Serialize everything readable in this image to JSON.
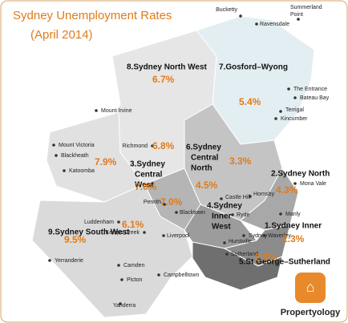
{
  "header": {
    "title": "Sydney Unemployment Rates",
    "subtitle": "(April 2014)"
  },
  "regions": [
    {
      "lines": [
        "8.Sydney North West"
      ]
    },
    {
      "lines": [
        "7.Gosford–Wyong"
      ]
    },
    {
      "lines": [
        "6.Sydney",
        "Central",
        "North"
      ]
    },
    {
      "lines": [
        "3.Sydney",
        "Central",
        "West"
      ]
    },
    {
      "lines": [
        "4.Sydney",
        "Inner",
        "West"
      ]
    },
    {
      "lines": [
        "2.Sydney North"
      ]
    },
    {
      "lines": [
        "1.Sydney Inner"
      ]
    },
    {
      "lines": [
        "5.St George–Sutherland"
      ]
    },
    {
      "lines": [
        "9.Sydney South West"
      ]
    }
  ],
  "rates": [
    "6.7%",
    "5.4%",
    "6.8%",
    "7.9%",
    "3.3%",
    "7.0%",
    "4.5%",
    "7.0%",
    "6.1%",
    "9.5%",
    "4.3%",
    "2.3%",
    "2.9%"
  ],
  "places": [
    "Bucketty",
    "Summerland",
    "Point",
    "Ravensdale",
    "The Entrance",
    "Bateau Bay",
    "Terrigal",
    "Kincumber",
    "Mount Irvine",
    "Mount Victoria",
    "Blackheath",
    "Katoomba",
    "Richmond",
    "Mona Vale",
    "Hornsby",
    "Castle Hill",
    "Penrith",
    "Blacktown",
    "Ryde",
    "Manly",
    "Luddenham",
    "Kemps Creek",
    "Liverpool",
    "Sydney",
    "Waverley",
    "Hurstville",
    "Sutherland",
    "Camden",
    "Campbelltown",
    "Yerranderie",
    "Picton",
    "Yanderra"
  ],
  "brand": "Propertyology"
}
